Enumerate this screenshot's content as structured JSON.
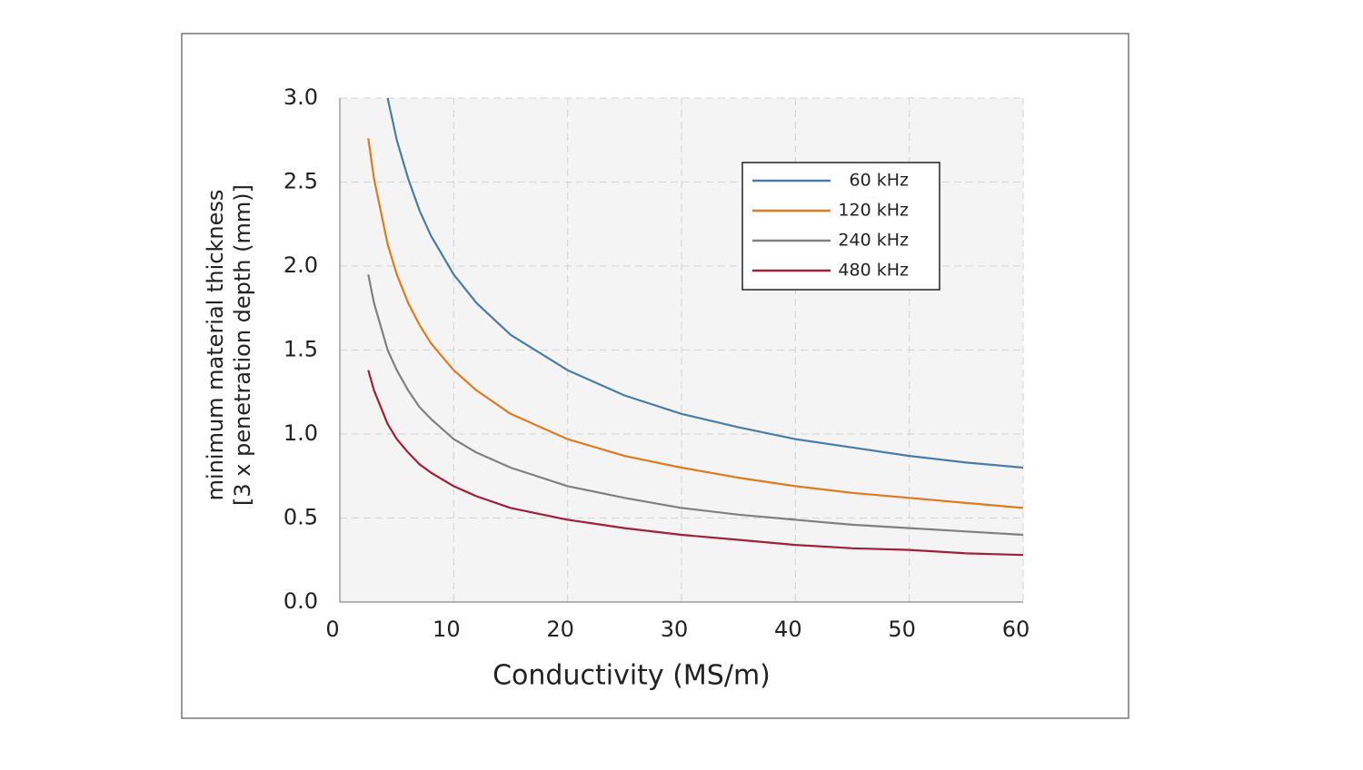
{
  "chart_data": {
    "type": "line",
    "xlabel": "Conductivity (MS/m)",
    "ylabel": [
      "minimum material thickness",
      "[3 x penetration depth (mm)]"
    ],
    "x": [
      2.5,
      3,
      4.2,
      5,
      6,
      7,
      8,
      10,
      12,
      15,
      20,
      25,
      30,
      35,
      40,
      45,
      50,
      55,
      60
    ],
    "series": [
      {
        "name": "60 kHz",
        "color": "#4a7ca6",
        "values": [
          null,
          null,
          3.0,
          2.75,
          2.52,
          2.33,
          2.18,
          1.95,
          1.78,
          1.59,
          1.38,
          1.23,
          1.12,
          1.04,
          0.97,
          0.92,
          0.87,
          0.83,
          0.8
        ]
      },
      {
        "name": "120 kHz",
        "color": "#e07a1f",
        "values": [
          2.76,
          2.52,
          2.13,
          1.95,
          1.78,
          1.65,
          1.54,
          1.38,
          1.26,
          1.12,
          0.97,
          0.87,
          0.8,
          0.74,
          0.69,
          0.65,
          0.62,
          0.59,
          0.56
        ]
      },
      {
        "name": "240 kHz",
        "color": "#808080",
        "values": [
          1.95,
          1.78,
          1.5,
          1.38,
          1.26,
          1.16,
          1.09,
          0.97,
          0.89,
          0.8,
          0.69,
          0.62,
          0.56,
          0.52,
          0.49,
          0.46,
          0.44,
          0.42,
          0.4
        ]
      },
      {
        "name": "480 kHz",
        "color": "#a0203a",
        "values": [
          1.38,
          1.26,
          1.06,
          0.97,
          0.89,
          0.82,
          0.77,
          0.69,
          0.63,
          0.56,
          0.49,
          0.44,
          0.4,
          0.37,
          0.34,
          0.32,
          0.31,
          0.29,
          0.28
        ]
      }
    ],
    "xlim": [
      0,
      60
    ],
    "xticks": [
      0,
      10,
      20,
      30,
      40,
      50,
      60
    ],
    "ylim": [
      0,
      3
    ],
    "yticks": [
      {
        "value": 0,
        "label": "0.0"
      },
      0.5,
      {
        "value": 1,
        "label": "1.0"
      },
      1.5,
      {
        "value": 2,
        "label": "2.0"
      },
      2.5,
      {
        "value": 3,
        "label": "3.0"
      }
    ],
    "grid": true,
    "legend": "upper right"
  }
}
